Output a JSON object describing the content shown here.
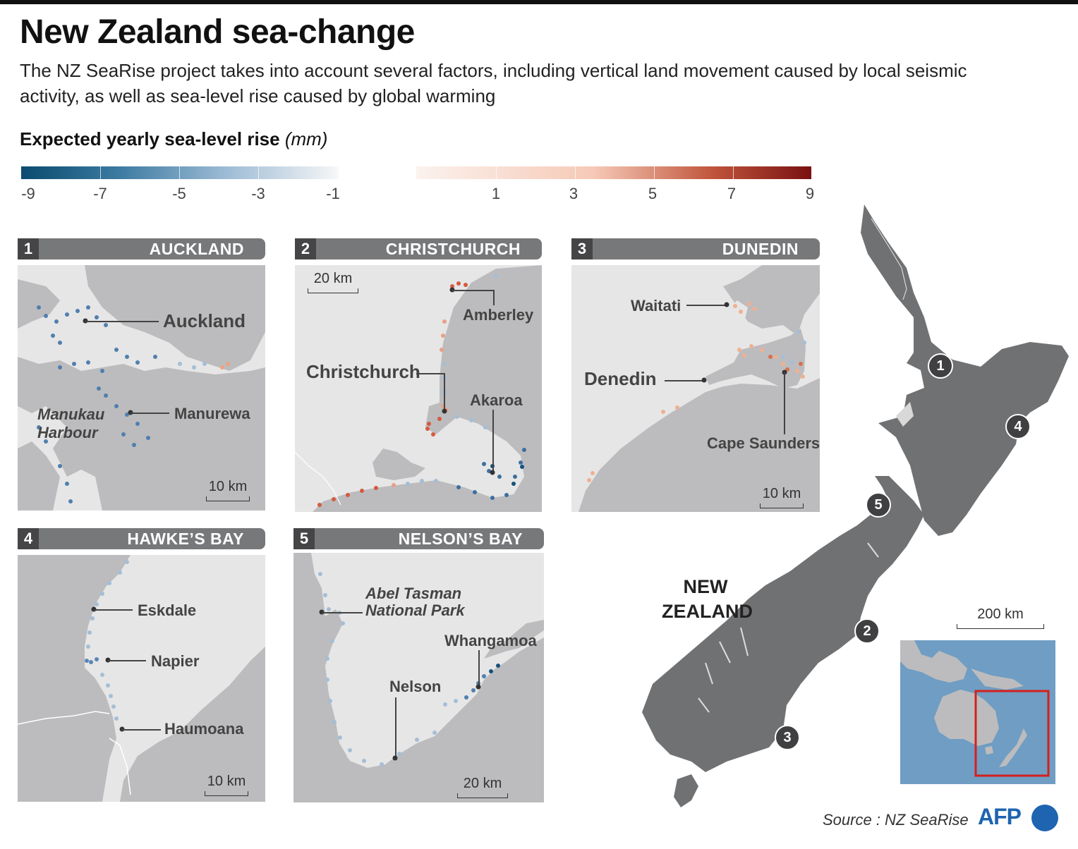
{
  "title": "New Zealand sea-change",
  "subtitle": "The NZ SeaRise project takes into account several factors, including vertical land movement caused by local seismic activity, as well as sea-level rise caused by global warming",
  "legend": {
    "title": "Expected yearly sea-level rise",
    "unit": "(mm)",
    "neg_ticks": [
      "-9",
      "-7",
      "-5",
      "-3",
      "-1"
    ],
    "pos_ticks": [
      "1",
      "3",
      "5",
      "7",
      "9"
    ],
    "colors": {
      "neg_low": "#0b4b6f",
      "neg_high": "#f7f7f7",
      "pos_low": "#fbf2ee",
      "pos_high": "#7a1111"
    }
  },
  "panels": [
    {
      "num": "1",
      "name": "AUCKLAND",
      "labels": [
        "Auckland",
        "Manurewa",
        "Manukau Harbour"
      ],
      "scale": "10 km"
    },
    {
      "num": "2",
      "name": "CHRISTCHURCH",
      "labels": [
        "Amberley",
        "Christchurch",
        "Akaroa"
      ],
      "scale": "20 km"
    },
    {
      "num": "3",
      "name": "DUNEDIN",
      "labels": [
        "Waitati",
        "Denedin",
        "Cape Saunders"
      ],
      "scale": "10 km"
    },
    {
      "num": "4",
      "name": "HAWKE’S BAY",
      "labels": [
        "Eskdale",
        "Napier",
        "Haumoana"
      ],
      "scale": "10 km"
    },
    {
      "num": "5",
      "name": "NELSON’S BAY",
      "labels": [
        "Abel Tasman National Park",
        "Whangamoa",
        "Nelson"
      ],
      "scale": "20 km"
    }
  ],
  "main_map": {
    "country": "NEW ZEALAND",
    "markers": [
      "1",
      "2",
      "3",
      "4",
      "5"
    ],
    "scale": "200 km"
  },
  "source": "Source : NZ SeaRise",
  "logo": "AFP"
}
